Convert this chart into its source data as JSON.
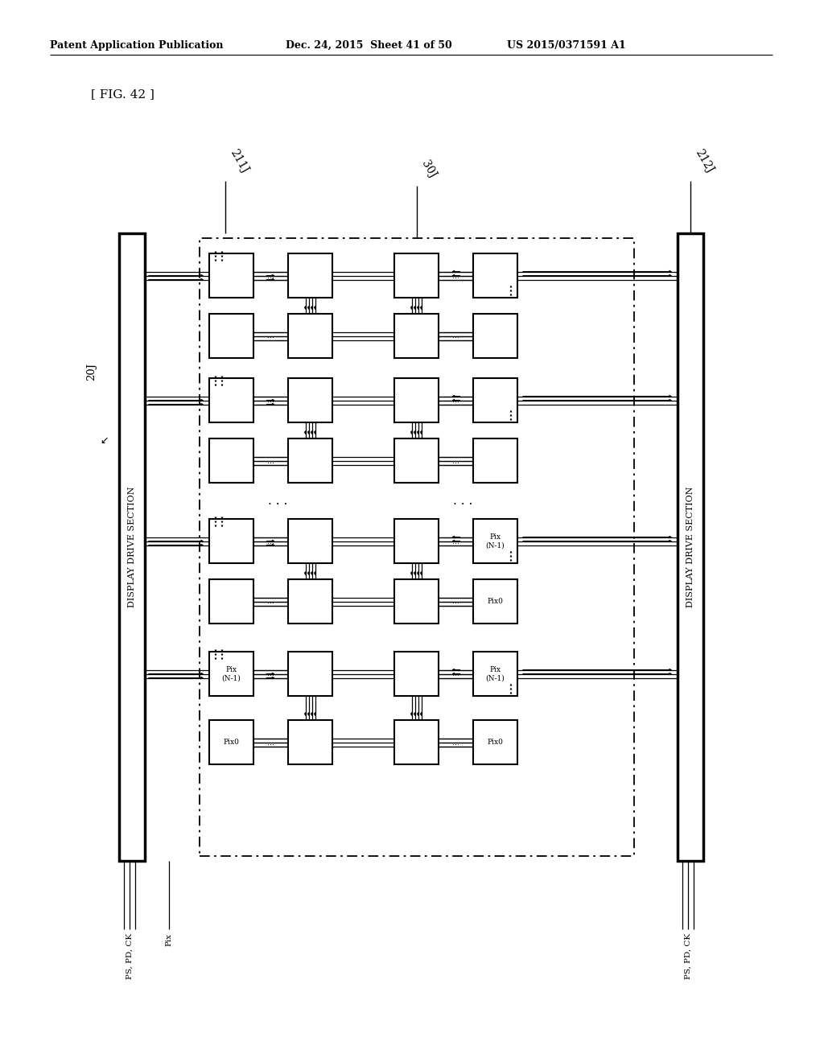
{
  "bg_color": "#ffffff",
  "title_text": "[ FIG. 42 ]",
  "header_left": "Patent Application Publication",
  "header_mid": "Dec. 24, 2015  Sheet 41 of 50",
  "header_right": "US 2015/0371591 A1",
  "label_20J": "20J",
  "label_211J": "211J",
  "label_212J": "212J",
  "label_30J": "30J",
  "label_display_left": "DISPLAY DRIVE SECTION",
  "label_display_right": "DISPLAY DRIVE SECTION",
  "label_ps_pd_ck_left": "PS, PD, CK",
  "label_ps_pd_ck_right": "PS, PD, CK",
  "label_pix": "Pix",
  "label_pix0": "Pix0",
  "label_pixN1_line1": "Pix",
  "label_pixN1_line2": "(N-1)"
}
